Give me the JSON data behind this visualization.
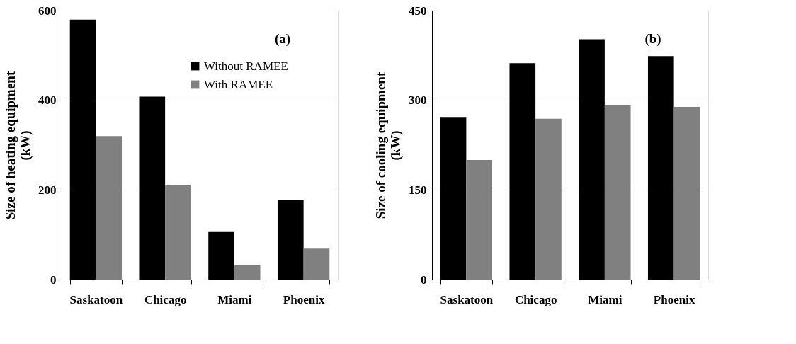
{
  "chart_data": [
    {
      "type": "bar",
      "ylabel": "Size of heating equipment\n(kW)",
      "categories": [
        "Saskatoon",
        "Chicago",
        "Miami",
        "Phoenix"
      ],
      "series": [
        {
          "name": "Without RAMEE",
          "color": "#000000",
          "values": [
            580,
            408,
            106,
            177
          ]
        },
        {
          "name": "With RAMEE",
          "color": "#808080",
          "values": [
            320,
            210,
            32,
            69
          ]
        }
      ],
      "ylim": [
        0,
        600
      ],
      "yticks": [
        0,
        200,
        400,
        600
      ],
      "grid": "y",
      "legend": "top right",
      "annotations": [
        "(a)"
      ]
    },
    {
      "type": "bar",
      "ylabel": "Size of cooling equipment\n(kW)",
      "categories": [
        "Saskatoon",
        "Chicago",
        "Miami",
        "Phoenix"
      ],
      "series": [
        {
          "color": "#000000",
          "values": [
            271,
            362,
            402,
            374
          ]
        },
        {
          "color": "#808080",
          "values": [
            200,
            269,
            292,
            289
          ]
        }
      ],
      "ylim": [
        0,
        450
      ],
      "yticks": [
        0,
        150,
        300,
        450
      ],
      "grid": "y",
      "legend": false,
      "annotations": [
        "(b)"
      ]
    }
  ]
}
